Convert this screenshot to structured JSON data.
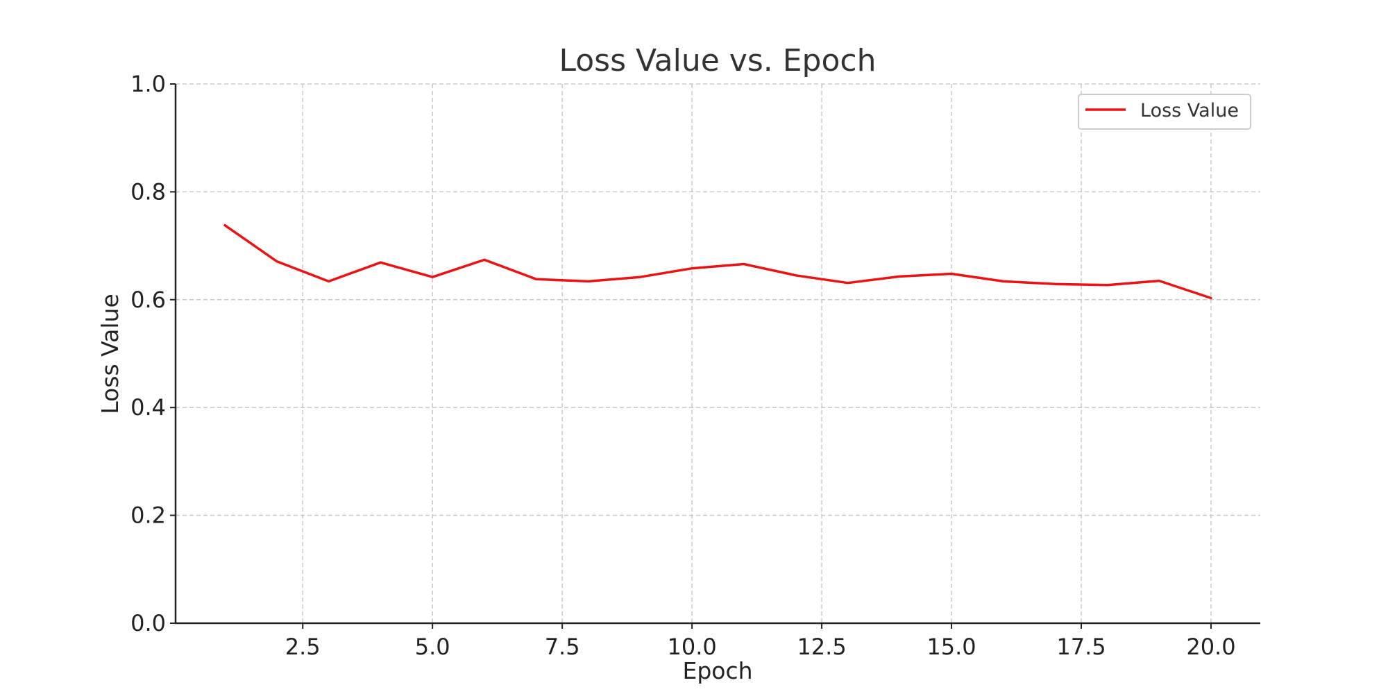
{
  "chart_data": {
    "type": "line",
    "title": "Loss Value vs. Epoch",
    "xlabel": "Epoch",
    "ylabel": "Loss Value",
    "xlim": [
      0.05,
      20.95
    ],
    "ylim": [
      0.0,
      1.0
    ],
    "x_ticks": [
      2.5,
      5.0,
      7.5,
      10.0,
      12.5,
      15.0,
      17.5,
      20.0
    ],
    "x_tick_labels": [
      "2.5",
      "5.0",
      "7.5",
      "10.0",
      "12.5",
      "15.0",
      "17.5",
      "20.0"
    ],
    "y_ticks": [
      0.0,
      0.2,
      0.4,
      0.6,
      0.8,
      1.0
    ],
    "y_tick_labels": [
      "0.0",
      "0.2",
      "0.4",
      "0.6",
      "0.8",
      "1.0"
    ],
    "grid": true,
    "legend_position": "top-right",
    "series": [
      {
        "name": "Loss Value",
        "color": "#ee1111",
        "x": [
          1,
          2,
          3,
          4,
          5,
          6,
          7,
          8,
          9,
          10,
          11,
          12,
          13,
          14,
          15,
          16,
          17,
          18,
          19,
          20
        ],
        "values": [
          0.738,
          0.671,
          0.634,
          0.669,
          0.642,
          0.674,
          0.638,
          0.634,
          0.642,
          0.658,
          0.666,
          0.645,
          0.631,
          0.643,
          0.648,
          0.634,
          0.629,
          0.627,
          0.635,
          0.603
        ]
      }
    ]
  }
}
